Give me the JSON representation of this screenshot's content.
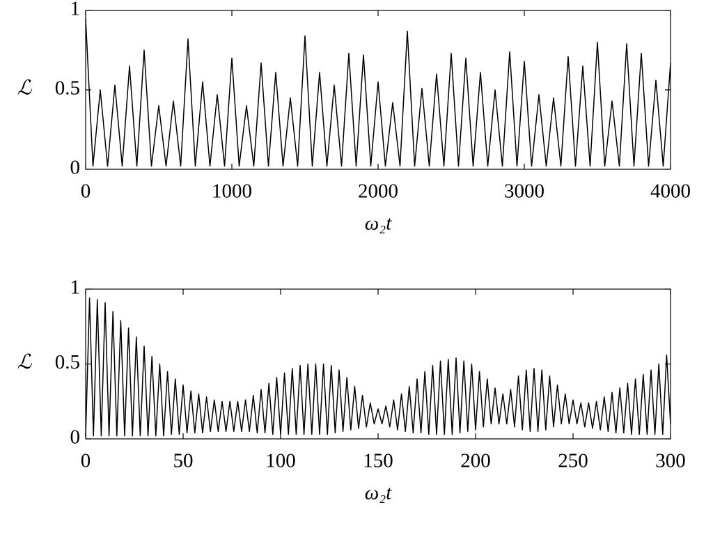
{
  "chart_data": [
    {
      "type": "line",
      "xlabel": "ω₂t",
      "ylabel": "ℒ",
      "color": "#000000",
      "xlim": [
        0,
        4000
      ],
      "ylim": [
        0,
        1
      ],
      "xticks": [
        0,
        1000,
        2000,
        3000,
        4000
      ],
      "yticks": [
        0,
        0.5,
        1
      ],
      "x": [
        0,
        50,
        100,
        150,
        200,
        250,
        300,
        350,
        400,
        450,
        500,
        550,
        600,
        650,
        700,
        750,
        800,
        850,
        900,
        950,
        1000,
        1050,
        1100,
        1150,
        1200,
        1250,
        1300,
        1350,
        1400,
        1450,
        1500,
        1550,
        1600,
        1650,
        1700,
        1750,
        1800,
        1850,
        1900,
        1950,
        2000,
        2050,
        2100,
        2150,
        2200,
        2250,
        2300,
        2350,
        2400,
        2450,
        2500,
        2550,
        2600,
        2650,
        2700,
        2750,
        2800,
        2850,
        2900,
        2950,
        3000,
        3050,
        3100,
        3150,
        3200,
        3250,
        3300,
        3350,
        3400,
        3450,
        3500,
        3550,
        3600,
        3650,
        3700,
        3750,
        3800,
        3850,
        3900,
        3950,
        4000
      ],
      "values": [
        0.95,
        0.02,
        0.5,
        0.02,
        0.53,
        0.02,
        0.65,
        0.02,
        0.75,
        0.02,
        0.4,
        0.02,
        0.43,
        0.02,
        0.82,
        0.02,
        0.55,
        0.02,
        0.47,
        0.02,
        0.7,
        0.02,
        0.4,
        0.02,
        0.67,
        0.02,
        0.61,
        0.02,
        0.45,
        0.02,
        0.84,
        0.02,
        0.61,
        0.02,
        0.53,
        0.02,
        0.73,
        0.02,
        0.72,
        0.02,
        0.55,
        0.02,
        0.42,
        0.02,
        0.87,
        0.02,
        0.51,
        0.02,
        0.6,
        0.02,
        0.73,
        0.02,
        0.7,
        0.02,
        0.61,
        0.02,
        0.5,
        0.02,
        0.74,
        0.02,
        0.68,
        0.02,
        0.47,
        0.02,
        0.45,
        0.02,
        0.71,
        0.02,
        0.65,
        0.02,
        0.8,
        0.02,
        0.43,
        0.02,
        0.79,
        0.02,
        0.73,
        0.02,
        0.56,
        0.02,
        0.67
      ]
    },
    {
      "type": "line",
      "xlabel": "ω₂t",
      "ylabel": "ℒ",
      "color": "#000000",
      "xlim": [
        0,
        300
      ],
      "ylim": [
        0,
        1
      ],
      "xticks": [
        0,
        50,
        100,
        150,
        200,
        250,
        300
      ],
      "yticks": [
        0,
        0.5,
        1
      ],
      "x": [
        0,
        2,
        4,
        6,
        8,
        10,
        12,
        14,
        16,
        18,
        20,
        22,
        24,
        26,
        28,
        30,
        32,
        34,
        36,
        38,
        40,
        42,
        44,
        46,
        48,
        50,
        52,
        54,
        56,
        58,
        60,
        62,
        64,
        66,
        68,
        70,
        72,
        74,
        76,
        78,
        80,
        82,
        84,
        86,
        88,
        90,
        92,
        94,
        96,
        98,
        100,
        102,
        104,
        106,
        108,
        110,
        112,
        114,
        116,
        118,
        120,
        122,
        124,
        126,
        128,
        130,
        132,
        134,
        136,
        138,
        140,
        142,
        144,
        146,
        148,
        150,
        152,
        154,
        156,
        158,
        160,
        162,
        164,
        166,
        168,
        170,
        172,
        174,
        176,
        178,
        180,
        182,
        184,
        186,
        188,
        190,
        192,
        194,
        196,
        198,
        200,
        202,
        204,
        206,
        208,
        210,
        212,
        214,
        216,
        218,
        220,
        222,
        224,
        226,
        228,
        230,
        232,
        234,
        236,
        238,
        240,
        242,
        244,
        246,
        248,
        250,
        252,
        254,
        256,
        258,
        260,
        262,
        264,
        266,
        268,
        270,
        272,
        274,
        276,
        278,
        280,
        282,
        284,
        286,
        288,
        290,
        292,
        294,
        296,
        298,
        300
      ],
      "values": [
        0.02,
        0.94,
        0.02,
        0.93,
        0.02,
        0.91,
        0.02,
        0.85,
        0.02,
        0.79,
        0.02,
        0.74,
        0.02,
        0.68,
        0.02,
        0.62,
        0.02,
        0.55,
        0.02,
        0.5,
        0.02,
        0.45,
        0.03,
        0.4,
        0.03,
        0.36,
        0.04,
        0.32,
        0.04,
        0.3,
        0.04,
        0.28,
        0.05,
        0.26,
        0.05,
        0.25,
        0.05,
        0.25,
        0.05,
        0.25,
        0.05,
        0.26,
        0.05,
        0.29,
        0.04,
        0.33,
        0.04,
        0.37,
        0.03,
        0.41,
        0.03,
        0.44,
        0.03,
        0.47,
        0.03,
        0.49,
        0.03,
        0.5,
        0.03,
        0.5,
        0.03,
        0.5,
        0.03,
        0.49,
        0.04,
        0.46,
        0.05,
        0.41,
        0.06,
        0.35,
        0.07,
        0.29,
        0.08,
        0.24,
        0.1,
        0.2,
        0.1,
        0.22,
        0.08,
        0.26,
        0.06,
        0.3,
        0.05,
        0.35,
        0.04,
        0.4,
        0.04,
        0.45,
        0.03,
        0.49,
        0.03,
        0.52,
        0.03,
        0.53,
        0.03,
        0.54,
        0.04,
        0.52,
        0.05,
        0.5,
        0.06,
        0.45,
        0.08,
        0.4,
        0.1,
        0.34,
        0.1,
        0.3,
        0.1,
        0.33,
        0.08,
        0.42,
        0.06,
        0.46,
        0.05,
        0.47,
        0.05,
        0.46,
        0.06,
        0.42,
        0.08,
        0.36,
        0.1,
        0.3,
        0.1,
        0.26,
        0.1,
        0.24,
        0.08,
        0.24,
        0.07,
        0.25,
        0.06,
        0.28,
        0.05,
        0.31,
        0.04,
        0.34,
        0.04,
        0.37,
        0.03,
        0.4,
        0.03,
        0.43,
        0.03,
        0.46,
        0.03,
        0.5,
        0.03,
        0.56,
        0.1
      ]
    }
  ]
}
